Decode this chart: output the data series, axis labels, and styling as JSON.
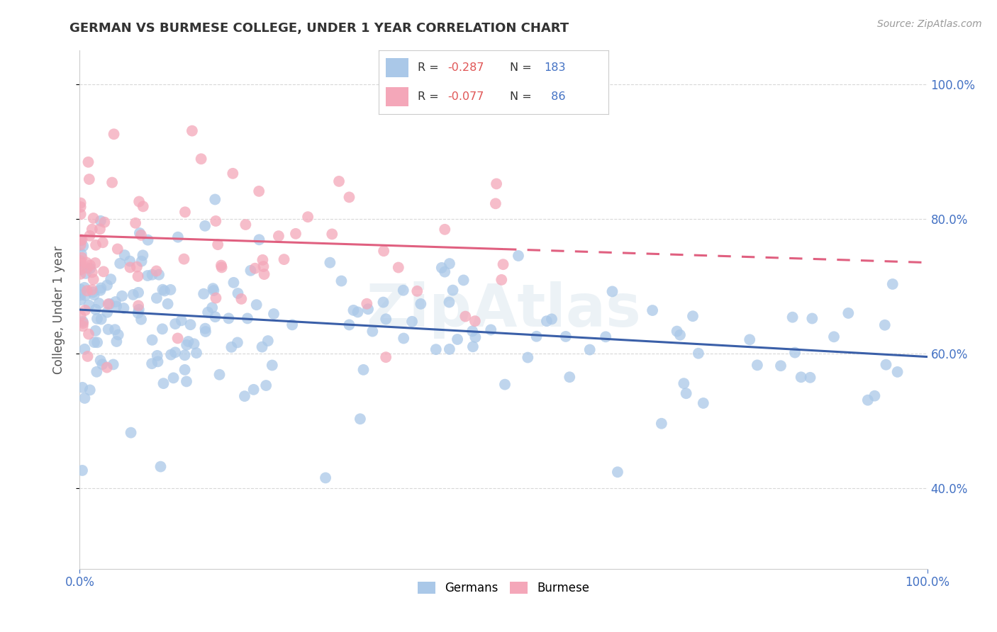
{
  "title": "GERMAN VS BURMESE COLLEGE, UNDER 1 YEAR CORRELATION CHART",
  "source": "Source: ZipAtlas.com",
  "ylabel": "College, Under 1 year",
  "legend_entries": [
    {
      "label": "Germans",
      "color": "#aac8e8",
      "R": "-0.287",
      "N": "183"
    },
    {
      "label": "Burmese",
      "color": "#f4a7b9",
      "R": "-0.077",
      "N": " 86"
    }
  ],
  "german_scatter_color": "#aac8e8",
  "burmese_scatter_color": "#f4a7b9",
  "german_line_color": "#3a5fa8",
  "burmese_line_color": "#e06080",
  "background_color": "#ffffff",
  "grid_color": "#d8d8d8",
  "watermark": "ZipAtlas",
  "german_line_y_start": 0.665,
  "german_line_y_end": 0.595,
  "burmese_line_y_start": 0.775,
  "burmese_line_y_end": 0.735,
  "burmese_line_solid_end": 0.5,
  "xlim": [
    0.0,
    1.0
  ],
  "ylim": [
    0.28,
    1.05
  ],
  "ytick_positions": [
    0.4,
    0.6,
    0.8,
    1.0
  ],
  "ytick_labels": [
    "40.0%",
    "60.0%",
    "80.0%",
    "100.0%"
  ]
}
